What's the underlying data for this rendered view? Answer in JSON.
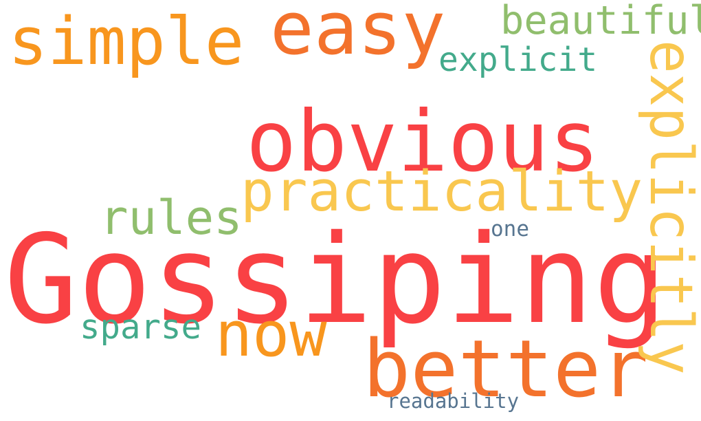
{
  "words": {
    "gossiping": {
      "text": "Gossiping",
      "color": "#f94144"
    },
    "obvious": {
      "text": "obvious",
      "color": "#f94144"
    },
    "easy": {
      "text": "easy",
      "color": "#f3722c"
    },
    "simple": {
      "text": "simple",
      "color": "#f8961e"
    },
    "better": {
      "text": "better",
      "color": "#f3722c"
    },
    "now": {
      "text": "now",
      "color": "#f8961e"
    },
    "practicality": {
      "text": "practicality",
      "color": "#f9c74f"
    },
    "explicitly": {
      "text": "explicitly",
      "color": "#f9c74f"
    },
    "rules": {
      "text": "rules",
      "color": "#90be6d"
    },
    "beautiful": {
      "text": "beautiful",
      "color": "#90be6d"
    },
    "explicit": {
      "text": "explicit",
      "color": "#43aa8b"
    },
    "sparse": {
      "text": "sparse",
      "color": "#43aa8b"
    },
    "one": {
      "text": "one",
      "color": "#577590"
    },
    "readability": {
      "text": "readability",
      "color": "#577590"
    }
  }
}
